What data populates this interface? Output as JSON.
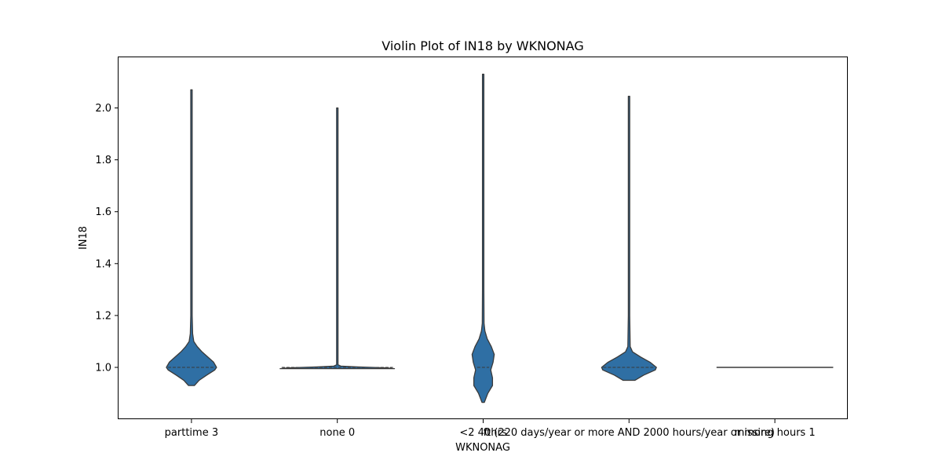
{
  "chart_data": {
    "type": "violin",
    "title": "Violin Plot of IN18 by WKNONAG",
    "xlabel": "WKNONAG",
    "ylabel": "IN18",
    "categories": [
      "parttime 3",
      "none 0",
      "<2 40hrs",
      "ft (220 days/year or more AND 2000 hours/year or more)",
      "missing hours 1"
    ],
    "ylim": [
      0.8,
      2.2
    ],
    "yticks": [
      1.0,
      1.2,
      1.4,
      1.6,
      1.8,
      2.0
    ],
    "grid": false,
    "violin_color": "#2f6fa4",
    "violins": [
      {
        "category": "parttime 3",
        "median": 1.0,
        "min": 0.93,
        "max": 2.07,
        "profile": [
          [
            0.93,
            0.05
          ],
          [
            0.95,
            0.13
          ],
          [
            0.97,
            0.26
          ],
          [
            0.99,
            0.4
          ],
          [
            1.0,
            0.43
          ],
          [
            1.02,
            0.38
          ],
          [
            1.04,
            0.28
          ],
          [
            1.06,
            0.18
          ],
          [
            1.08,
            0.1
          ],
          [
            1.1,
            0.04
          ],
          [
            1.13,
            0.02
          ],
          [
            1.2,
            0.012
          ],
          [
            2.07,
            0.012
          ]
        ]
      },
      {
        "category": "none 0",
        "median": 1.0,
        "min": 0.995,
        "max": 2.0,
        "profile": [
          [
            0.995,
            0.98
          ],
          [
            0.998,
            0.85
          ],
          [
            1.0,
            0.6
          ],
          [
            1.002,
            0.35
          ],
          [
            1.005,
            0.06
          ],
          [
            1.01,
            0.012
          ],
          [
            2.0,
            0.012
          ]
        ]
      },
      {
        "category": "<2 40hrs",
        "median": 1.0,
        "min": 0.865,
        "max": 2.13,
        "profile": [
          [
            0.865,
            0.02
          ],
          [
            0.9,
            0.08
          ],
          [
            0.93,
            0.16
          ],
          [
            0.96,
            0.16
          ],
          [
            0.99,
            0.13
          ],
          [
            1.02,
            0.17
          ],
          [
            1.05,
            0.19
          ],
          [
            1.08,
            0.14
          ],
          [
            1.11,
            0.07
          ],
          [
            1.14,
            0.03
          ],
          [
            1.17,
            0.015
          ],
          [
            1.3,
            0.012
          ],
          [
            2.13,
            0.012
          ]
        ]
      },
      {
        "category": "ft (220 days/year or more AND 2000 hours/year or more)",
        "median": 1.0,
        "min": 0.95,
        "max": 2.045,
        "profile": [
          [
            0.95,
            0.1
          ],
          [
            0.97,
            0.25
          ],
          [
            0.99,
            0.45
          ],
          [
            1.0,
            0.47
          ],
          [
            1.02,
            0.36
          ],
          [
            1.04,
            0.2
          ],
          [
            1.06,
            0.06
          ],
          [
            1.08,
            0.02
          ],
          [
            1.2,
            0.012
          ],
          [
            2.045,
            0.012
          ]
        ]
      },
      {
        "category": "missing hours 1",
        "median": 1.0,
        "min": 1.0,
        "max": 1.0,
        "profile": [
          [
            1.0,
            1.0
          ]
        ]
      }
    ]
  }
}
